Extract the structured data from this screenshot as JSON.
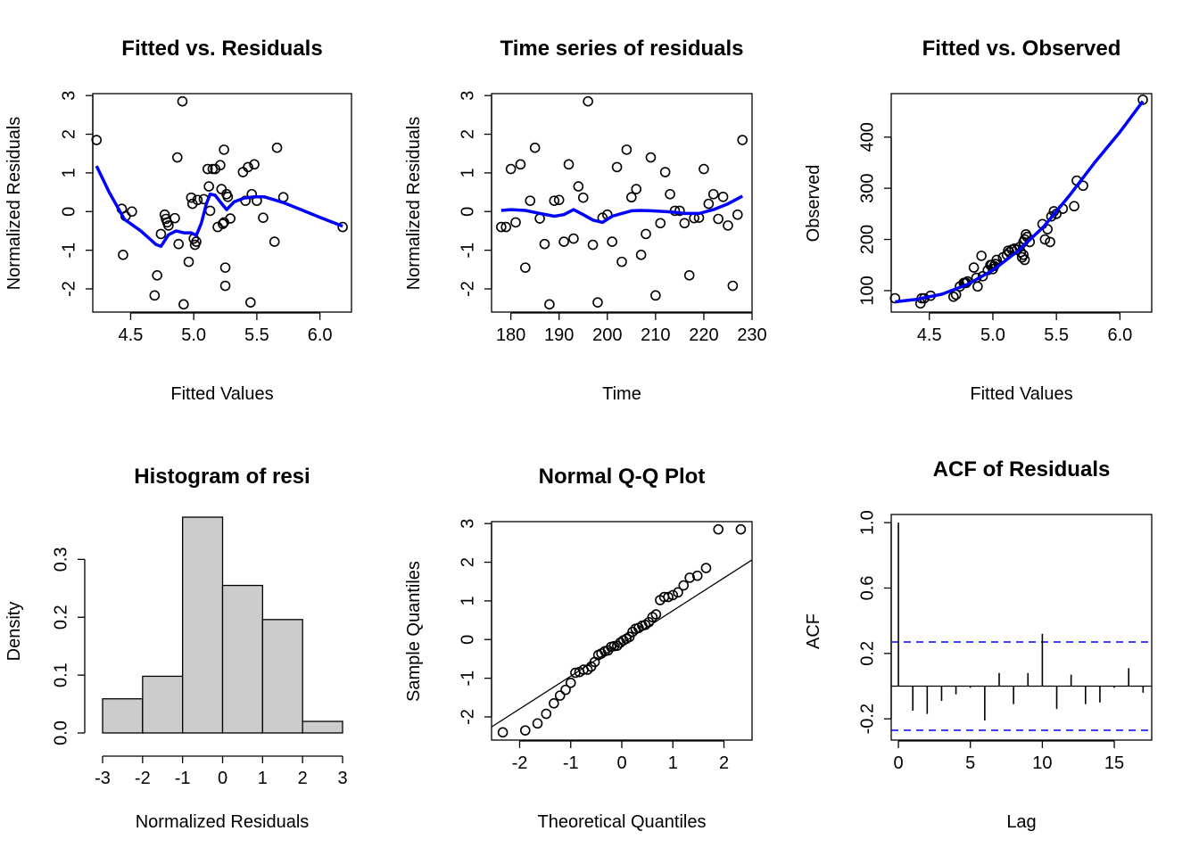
{
  "chart_data": [
    {
      "type": "scatter",
      "title": "Fitted vs. Residuals",
      "xlabel": "Fitted Values",
      "ylabel": "Normalized Residuals",
      "xlim": [
        4.2,
        6.25
      ],
      "ylim": [
        -2.6,
        3.05
      ],
      "xticks": [
        4.5,
        5.0,
        5.5,
        6.0
      ],
      "xtick_labels": [
        "4.5",
        "5.0",
        "5.5",
        "6.0"
      ],
      "yticks": [
        -2,
        -1,
        0,
        1,
        2,
        3
      ],
      "ytick_labels": [
        "-2",
        "-1",
        "0",
        "1",
        "2",
        "3"
      ],
      "x": [
        4.23,
        4.43,
        4.44,
        4.46,
        4.51,
        4.69,
        4.71,
        4.74,
        4.77,
        4.78,
        4.79,
        4.8,
        4.85,
        4.87,
        4.88,
        4.91,
        4.92,
        4.96,
        4.98,
        4.99,
        5.0,
        5.01,
        5.02,
        5.03,
        5.08,
        5.11,
        5.12,
        5.13,
        5.15,
        5.17,
        5.19,
        5.21,
        5.22,
        5.23,
        5.24,
        5.24,
        5.25,
        5.25,
        5.26,
        5.27,
        5.29,
        5.39,
        5.41,
        5.43,
        5.45,
        5.46,
        5.48,
        5.5,
        5.55,
        5.64,
        5.66,
        5.71,
        6.18
      ],
      "y": [
        1.85,
        0.07,
        -1.12,
        -0.12,
        0.0,
        -2.17,
        -1.65,
        -0.58,
        -0.08,
        -0.19,
        -0.28,
        -0.36,
        -0.17,
        1.4,
        -0.84,
        2.85,
        -2.4,
        -1.3,
        0.36,
        0.2,
        -0.7,
        -0.86,
        -0.78,
        0.3,
        0.32,
        1.1,
        0.65,
        0.02,
        1.1,
        1.1,
        -0.4,
        1.2,
        0.58,
        -0.32,
        -0.28,
        1.6,
        -1.45,
        -1.92,
        0.45,
        0.38,
        -0.18,
        1.02,
        0.28,
        1.15,
        -2.35,
        0.45,
        1.22,
        0.28,
        -0.16,
        -0.78,
        1.65,
        0.37,
        -0.4
      ],
      "smooth_x": [
        4.23,
        4.33,
        4.45,
        4.58,
        4.7,
        4.74,
        4.8,
        4.86,
        4.92,
        4.98,
        5.02,
        5.06,
        5.1,
        5.13,
        5.17,
        5.21,
        5.26,
        5.32,
        5.4,
        5.48,
        5.56,
        5.64,
        5.72,
        5.85,
        6.0,
        6.18
      ],
      "smooth_y": [
        1.18,
        0.5,
        -0.2,
        -0.5,
        -0.85,
        -0.9,
        -0.6,
        -0.5,
        -0.55,
        -0.55,
        -0.62,
        -0.3,
        0.2,
        0.45,
        0.42,
        0.25,
        0.05,
        0.25,
        0.35,
        0.38,
        0.38,
        0.3,
        0.22,
        0.05,
        -0.15,
        -0.38
      ],
      "smooth_color": "#0000ff"
    },
    {
      "type": "scatter",
      "title": "Time series of residuals",
      "xlabel": "Time",
      "ylabel": "Normalized Residuals",
      "xlim": [
        176,
        230
      ],
      "ylim": [
        -2.6,
        3.05
      ],
      "xticks": [
        180,
        190,
        200,
        210,
        220,
        230
      ],
      "xtick_labels": [
        "180",
        "190",
        "200",
        "210",
        "220",
        "230"
      ],
      "yticks": [
        -2,
        -1,
        0,
        1,
        2,
        3
      ],
      "ytick_labels": [
        "-2",
        "-1",
        "0",
        "1",
        "2",
        "3"
      ],
      "x": [
        178,
        179,
        180,
        181,
        182,
        183,
        184,
        185,
        186,
        187,
        188,
        189,
        190,
        191,
        192,
        193,
        194,
        195,
        196,
        197,
        198,
        199,
        200,
        201,
        202,
        203,
        204,
        205,
        206,
        207,
        208,
        209,
        210,
        211,
        212,
        213,
        214,
        215,
        216,
        217,
        218,
        219,
        220,
        221,
        222,
        223,
        224,
        225,
        226,
        227,
        228
      ],
      "y": [
        -0.4,
        -0.4,
        1.1,
        -0.28,
        1.22,
        -1.45,
        0.28,
        1.65,
        -0.18,
        -0.84,
        -2.4,
        0.28,
        0.3,
        -0.78,
        1.22,
        -0.7,
        0.65,
        0.36,
        2.85,
        -0.86,
        -2.35,
        -0.16,
        -0.08,
        -0.78,
        1.15,
        -1.3,
        1.6,
        0.37,
        0.58,
        -1.12,
        -0.58,
        1.4,
        -2.17,
        -0.3,
        1.02,
        0.45,
        0.02,
        0.02,
        -0.3,
        -1.65,
        -0.17,
        -0.16,
        1.1,
        0.2,
        0.45,
        -0.19,
        0.38,
        -0.36,
        -1.92,
        -0.08,
        1.85
      ],
      "smooth_x": [
        178,
        180,
        183,
        186,
        189,
        191,
        193,
        195,
        197,
        199,
        201,
        203,
        205,
        207,
        209,
        212,
        214,
        216,
        219,
        222,
        225,
        228
      ],
      "smooth_y": [
        0.03,
        0.05,
        0.03,
        -0.05,
        -0.12,
        -0.08,
        0.05,
        -0.08,
        -0.22,
        -0.28,
        -0.12,
        -0.05,
        0.02,
        0.03,
        0.02,
        0.0,
        -0.02,
        -0.05,
        -0.05,
        0.05,
        0.2,
        0.4
      ],
      "smooth_color": "#0000ff"
    },
    {
      "type": "scatter",
      "title": "Fitted vs. Observed",
      "xlabel": "Fitted Values",
      "ylabel": "Observed",
      "xlim": [
        4.2,
        6.25
      ],
      "ylim": [
        58,
        485
      ],
      "xticks": [
        4.5,
        5.0,
        5.5,
        6.0
      ],
      "xtick_labels": [
        "4.5",
        "5.0",
        "5.5",
        "6.0"
      ],
      "yticks": [
        100,
        200,
        300,
        400
      ],
      "ytick_labels": [
        "100",
        "200",
        "300",
        "400"
      ],
      "x": [
        4.23,
        4.43,
        4.44,
        4.46,
        4.51,
        4.69,
        4.71,
        4.74,
        4.77,
        4.78,
        4.79,
        4.8,
        4.85,
        4.87,
        4.88,
        4.91,
        4.92,
        4.96,
        4.98,
        4.99,
        5.0,
        5.01,
        5.02,
        5.03,
        5.08,
        5.11,
        5.12,
        5.13,
        5.15,
        5.17,
        5.19,
        5.21,
        5.22,
        5.23,
        5.24,
        5.24,
        5.25,
        5.25,
        5.26,
        5.27,
        5.29,
        5.39,
        5.41,
        5.43,
        5.45,
        5.46,
        5.48,
        5.5,
        5.55,
        5.64,
        5.66,
        5.71,
        6.18
      ],
      "y": [
        85,
        75,
        85,
        85,
        90,
        88,
        92,
        108,
        115,
        115,
        115,
        118,
        145,
        125,
        108,
        168,
        128,
        140,
        150,
        150,
        142,
        148,
        152,
        160,
        165,
        170,
        178,
        175,
        180,
        182,
        180,
        185,
        175,
        165,
        170,
        195,
        160,
        200,
        210,
        205,
        195,
        230,
        200,
        220,
        195,
        245,
        255,
        250,
        260,
        265,
        315,
        305,
        473
      ],
      "smooth_x": [
        4.23,
        4.4,
        4.6,
        4.8,
        5.0,
        5.2,
        5.4,
        5.6,
        5.8,
        6.0,
        6.18
      ],
      "smooth_y": [
        78,
        83,
        93,
        112,
        140,
        178,
        225,
        285,
        350,
        410,
        470
      ],
      "smooth_color": "#0000ff"
    },
    {
      "type": "bar",
      "title": "Histogram of resi",
      "xlabel": "Normalized Residuals",
      "ylabel": "Density",
      "bin_edges": [
        -3,
        -2,
        -1,
        0,
        1,
        2,
        3
      ],
      "values": [
        0.059,
        0.098,
        0.373,
        0.255,
        0.196,
        0.02
      ],
      "xlim": [
        -3,
        3
      ],
      "ylim": [
        0,
        0.373
      ],
      "xticks": [
        -3,
        -2,
        -1,
        0,
        1,
        2,
        3
      ],
      "xtick_labels": [
        "-3",
        "-2",
        "-1",
        "0",
        "1",
        "2",
        "3"
      ],
      "yticks": [
        0.0,
        0.1,
        0.2,
        0.3
      ],
      "ytick_labels": [
        "0.0",
        "0.1",
        "0.2",
        "0.3"
      ],
      "bar_color": "#cccccc"
    },
    {
      "type": "scatter",
      "title": "Normal Q-Q Plot",
      "xlabel": "Theoretical Quantiles",
      "ylabel": "Sample Quantiles",
      "xlim": [
        -2.55,
        2.55
      ],
      "ylim": [
        -2.6,
        3.05
      ],
      "xticks": [
        -2,
        -1,
        0,
        1,
        2
      ],
      "xtick_labels": [
        "-2",
        "-1",
        "0",
        "1",
        "2"
      ],
      "yticks": [
        -2,
        -1,
        0,
        1,
        2,
        3
      ],
      "ytick_labels": [
        "-2",
        "-1",
        "0",
        "1",
        "2",
        "3"
      ],
      "x": [
        -2.33,
        -1.89,
        -1.65,
        -1.48,
        -1.33,
        -1.21,
        -1.1,
        -1.0,
        -0.91,
        -0.83,
        -0.75,
        -0.67,
        -0.6,
        -0.53,
        -0.46,
        -0.4,
        -0.33,
        -0.27,
        -0.21,
        -0.15,
        -0.09,
        -0.03,
        0.03,
        0.09,
        0.15,
        0.21,
        0.27,
        0.33,
        0.4,
        0.46,
        0.53,
        0.6,
        0.67,
        0.75,
        0.83,
        0.91,
        1.0,
        1.1,
        1.21,
        1.33,
        1.48,
        1.65,
        1.89,
        2.33
      ],
      "y": [
        -2.4,
        -2.35,
        -2.17,
        -1.92,
        -1.65,
        -1.45,
        -1.3,
        -1.12,
        -0.86,
        -0.84,
        -0.78,
        -0.78,
        -0.7,
        -0.58,
        -0.4,
        -0.36,
        -0.3,
        -0.28,
        -0.19,
        -0.17,
        -0.16,
        -0.08,
        -0.02,
        0.02,
        0.07,
        0.2,
        0.28,
        0.3,
        0.36,
        0.38,
        0.45,
        0.58,
        0.65,
        1.02,
        1.1,
        1.1,
        1.15,
        1.22,
        1.4,
        1.6,
        1.65,
        1.85,
        2.85,
        2.85
      ],
      "ref_line": [
        [
          -2.55,
          -2.26
        ],
        [
          2.55,
          2.06
        ]
      ]
    },
    {
      "type": "bar",
      "title": "ACF of Residuals",
      "xlabel": "Lag",
      "ylabel": "ACF",
      "lags": [
        0,
        1,
        2,
        3,
        4,
        5,
        6,
        7,
        8,
        9,
        10,
        11,
        12,
        13,
        14,
        15,
        16,
        17
      ],
      "values": [
        1.0,
        -0.15,
        -0.17,
        -0.09,
        -0.05,
        -0.01,
        -0.21,
        0.08,
        -0.11,
        0.08,
        0.32,
        -0.14,
        0.07,
        -0.11,
        -0.1,
        -0.01,
        0.11,
        -0.04
      ],
      "ci": 0.27,
      "xlim": [
        -0.5,
        17.6
      ],
      "ylim": [
        -0.33,
        1.05
      ],
      "xticks": [
        0,
        5,
        10,
        15
      ],
      "xtick_labels": [
        "0",
        "5",
        "10",
        "15"
      ],
      "yticks": [
        -0.2,
        0.2,
        0.6,
        1.0
      ],
      "ytick_labels": [
        "-0.2",
        "0.2",
        "0.6",
        "1.0"
      ],
      "ci_color": "#0000ff"
    }
  ]
}
